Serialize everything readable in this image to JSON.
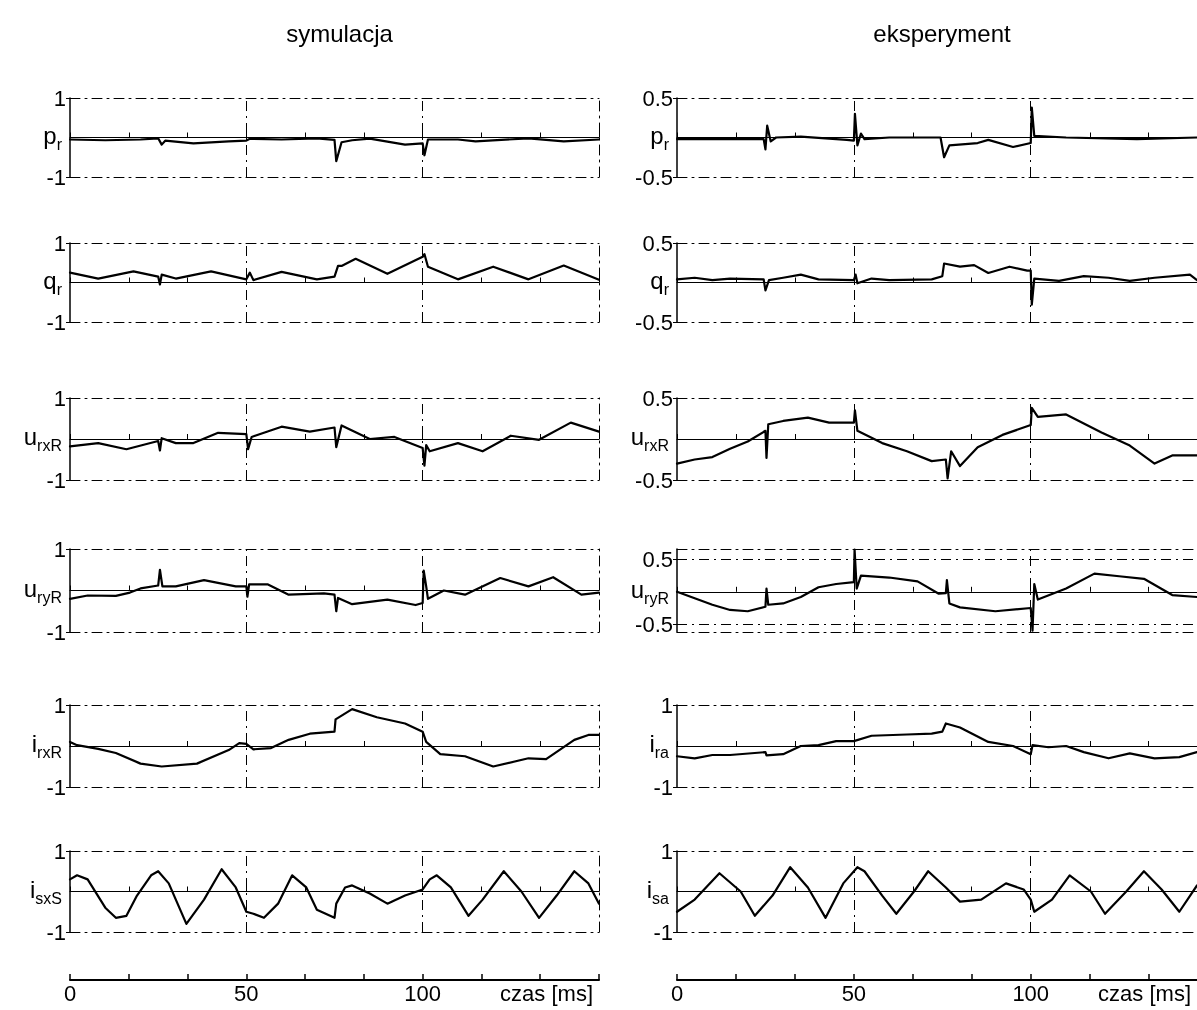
{
  "chart_data": [
    {
      "type": "line",
      "title": "symulacja",
      "ylabel": "p$_{r}$",
      "color": "#000000",
      "tick_labels": "y",
      "xlim": [
        0,
        150
      ],
      "xticks": [
        {
          "value": 0,
          "label": null
        },
        {
          "value": 16.7,
          "label": null
        },
        {
          "value": 33.3,
          "label": null
        },
        {
          "value": 50,
          "label": null
        },
        {
          "value": 66.7,
          "label": null
        },
        {
          "value": 83.3,
          "label": null
        },
        {
          "value": 100,
          "label": null
        },
        {
          "value": 116.7,
          "label": null
        },
        {
          "value": 133.3,
          "label": null
        },
        {
          "value": 150,
          "label": null
        }
      ],
      "ylim": [
        -1,
        1
      ],
      "yticks": [
        -1,
        1
      ],
      "ref_lines": [
        {
          "axis": "x",
          "value": 50,
          "line_style": "dashed"
        },
        {
          "axis": "x",
          "value": 100,
          "line_style": "dashed"
        }
      ],
      "x": [
        0,
        10,
        20,
        25,
        26,
        27,
        35,
        45,
        50,
        51,
        60,
        70,
        75,
        75.5,
        77,
        80,
        85,
        95,
        100,
        100.5,
        101.5,
        110,
        115,
        130,
        140,
        150
      ],
      "values": [
        -0.05,
        -0.07,
        -0.05,
        -0.02,
        -0.18,
        -0.08,
        -0.15,
        -0.1,
        -0.08,
        -0.03,
        -0.05,
        -0.02,
        -0.06,
        -0.6,
        -0.12,
        -0.07,
        -0.03,
        -0.18,
        -0.15,
        -0.45,
        -0.05,
        -0.05,
        -0.1,
        -0.02,
        -0.1,
        -0.05
      ]
    },
    {
      "type": "line",
      "title": "eksperyment",
      "ylabel": "p$_{r}$",
      "color": "#000000",
      "tick_labels": "y",
      "xlim": [
        0,
        147
      ],
      "xticks": [
        {
          "value": 0,
          "label": null
        },
        {
          "value": 16.7,
          "label": null
        },
        {
          "value": 33.3,
          "label": null
        },
        {
          "value": 50,
          "label": null
        },
        {
          "value": 66.7,
          "label": null
        },
        {
          "value": 83.3,
          "label": null
        },
        {
          "value": 100,
          "label": null
        },
        {
          "value": 116.7,
          "label": null
        },
        {
          "value": 133.3,
          "label": null
        }
      ],
      "ylim": [
        -0.5,
        0.5
      ],
      "yticks": [
        -0.5,
        0.5
      ],
      "ref_lines": [
        {
          "axis": "x",
          "value": 50,
          "line_style": "dashed"
        },
        {
          "axis": "x",
          "value": 100,
          "line_style": "dashed"
        }
      ],
      "x": [
        0,
        10,
        24.5,
        25,
        25.5,
        26.5,
        28,
        35,
        48,
        50,
        50.3,
        51,
        52,
        53,
        60,
        74.5,
        75.5,
        77,
        85,
        88,
        95,
        100,
        100.3,
        101,
        110,
        130,
        147
      ],
      "values": [
        -0.02,
        -0.02,
        -0.02,
        -0.15,
        0.15,
        -0.05,
        0,
        0.01,
        -0.03,
        -0.04,
        0.3,
        -0.1,
        0.05,
        -0.02,
        0,
        0,
        -0.25,
        -0.1,
        -0.07,
        -0.03,
        -0.12,
        -0.07,
        0.38,
        0.02,
        0,
        -0.02,
        0
      ]
    },
    {
      "type": "line",
      "ylabel": "q$_{r}$",
      "color": "#000000",
      "tick_labels": "y",
      "xlim": [
        0,
        150
      ],
      "xticks": [
        {
          "value": 0,
          "label": null
        },
        {
          "value": 16.7,
          "label": null
        },
        {
          "value": 33.3,
          "label": null
        },
        {
          "value": 50,
          "label": null
        },
        {
          "value": 66.7,
          "label": null
        },
        {
          "value": 83.3,
          "label": null
        },
        {
          "value": 100,
          "label": null
        },
        {
          "value": 116.7,
          "label": null
        },
        {
          "value": 133.3,
          "label": null
        },
        {
          "value": 150,
          "label": null
        }
      ],
      "ylim": [
        -1,
        1
      ],
      "yticks": [
        -1,
        1
      ],
      "ref_lines": [
        {
          "axis": "x",
          "value": 50,
          "line_style": "dashed"
        },
        {
          "axis": "x",
          "value": 100,
          "line_style": "dashed"
        }
      ],
      "x": [
        0,
        8,
        18,
        25,
        25.5,
        26,
        30,
        40,
        50,
        51,
        52,
        60,
        70,
        75,
        76,
        77,
        81,
        90,
        100,
        100.5,
        101.5,
        110,
        120,
        130,
        140,
        150
      ],
      "values": [
        0.25,
        0.1,
        0.28,
        0.15,
        -0.05,
        0.2,
        0.1,
        0.28,
        0.08,
        0.25,
        0.06,
        0.27,
        0.08,
        0.15,
        0.42,
        0.42,
        0.6,
        0.22,
        0.65,
        0.72,
        0.4,
        0.08,
        0.4,
        0.08,
        0.43,
        0.07
      ]
    },
    {
      "type": "line",
      "ylabel": "q$_{r}$",
      "color": "#000000",
      "tick_labels": "y",
      "xlim": [
        0,
        147
      ],
      "xticks": [
        {
          "value": 0,
          "label": null
        },
        {
          "value": 16.7,
          "label": null
        },
        {
          "value": 33.3,
          "label": null
        },
        {
          "value": 50,
          "label": null
        },
        {
          "value": 66.7,
          "label": null
        },
        {
          "value": 83.3,
          "label": null
        },
        {
          "value": 100,
          "label": null
        },
        {
          "value": 116.7,
          "label": null
        },
        {
          "value": 133.3,
          "label": null
        }
      ],
      "ylim": [
        -0.5,
        0.5
      ],
      "yticks": [
        -0.5,
        0.5
      ],
      "ref_lines": [
        {
          "axis": "x",
          "value": 50,
          "line_style": "dashed"
        },
        {
          "axis": "x",
          "value": 100,
          "line_style": "dashed"
        }
      ],
      "x": [
        0,
        5,
        10,
        15,
        24.5,
        25,
        26,
        30,
        35,
        40,
        50,
        50.5,
        51,
        55,
        60,
        72,
        75,
        75.5,
        80,
        84,
        88,
        94,
        99,
        100,
        100.3,
        101,
        108,
        115,
        122,
        128,
        135,
        145,
        147
      ],
      "values": [
        0.04,
        0.06,
        0.03,
        0.05,
        0.04,
        -0.1,
        0.03,
        0.06,
        0.1,
        0.04,
        0.03,
        0.1,
        -0.01,
        0.05,
        0.03,
        0.04,
        0.08,
        0.24,
        0.2,
        0.22,
        0.12,
        0.2,
        0.15,
        0.15,
        -0.28,
        0.05,
        0.02,
        0.08,
        0.06,
        0.02,
        0.06,
        0.1,
        0.03
      ]
    },
    {
      "type": "line",
      "ylabel": "u$_{rxR}$",
      "color": "#000000",
      "tick_labels": "y",
      "xlim": [
        0,
        150
      ],
      "xticks": [
        {
          "value": 0,
          "label": null
        },
        {
          "value": 16.7,
          "label": null
        },
        {
          "value": 33.3,
          "label": null
        },
        {
          "value": 50,
          "label": null
        },
        {
          "value": 66.7,
          "label": null
        },
        {
          "value": 83.3,
          "label": null
        },
        {
          "value": 100,
          "label": null
        },
        {
          "value": 116.7,
          "label": null
        },
        {
          "value": 133.3,
          "label": null
        },
        {
          "value": 150,
          "label": null
        }
      ],
      "ylim": [
        -1,
        1
      ],
      "yticks": [
        -1,
        1
      ],
      "ref_lines": [
        {
          "axis": "x",
          "value": 50,
          "line_style": "dashed"
        },
        {
          "axis": "x",
          "value": 100,
          "line_style": "dashed"
        }
      ],
      "x": [
        0,
        8,
        16,
        25,
        25.5,
        26,
        30,
        35,
        42,
        50,
        50.5,
        51.5,
        60,
        68,
        75,
        75.5,
        77,
        85,
        92,
        100,
        100.5,
        101,
        102,
        110,
        117,
        125,
        133,
        142,
        150
      ],
      "values": [
        -0.18,
        -0.1,
        -0.25,
        -0.05,
        -0.28,
        0.02,
        -0.1,
        -0.1,
        0.15,
        0.12,
        -0.25,
        0.05,
        0.3,
        0.18,
        0.28,
        -0.2,
        0.33,
        0,
        0.05,
        -0.22,
        -0.65,
        -0.15,
        -0.3,
        -0.1,
        -0.3,
        0.08,
        -0.02,
        0.4,
        0.18
      ]
    },
    {
      "type": "line",
      "ylabel": "u$_{rxR}$",
      "color": "#000000",
      "tick_labels": "y",
      "xlim": [
        0,
        147
      ],
      "xticks": [
        {
          "value": 0,
          "label": null
        },
        {
          "value": 16.7,
          "label": null
        },
        {
          "value": 33.3,
          "label": null
        },
        {
          "value": 50,
          "label": null
        },
        {
          "value": 66.7,
          "label": null
        },
        {
          "value": 83.3,
          "label": null
        },
        {
          "value": 100,
          "label": null
        },
        {
          "value": 116.7,
          "label": null
        },
        {
          "value": 133.3,
          "label": null
        }
      ],
      "ylim": [
        -0.5,
        0.5
      ],
      "yticks": [
        -0.5,
        0.5
      ],
      "ref_lines": [
        {
          "axis": "x",
          "value": 50,
          "line_style": "dashed"
        },
        {
          "axis": "x",
          "value": 100,
          "line_style": "dashed"
        }
      ],
      "x": [
        0,
        5,
        10,
        15,
        20,
        25,
        25.3,
        25.8,
        30,
        37,
        43,
        50,
        50.3,
        51,
        58,
        65,
        72,
        76,
        76.5,
        77.5,
        80,
        85,
        92,
        100,
        100.3,
        102,
        110,
        120,
        128,
        135,
        140,
        147
      ],
      "values": [
        -0.3,
        -0.25,
        -0.22,
        -0.12,
        -0.03,
        0.1,
        -0.23,
        0.18,
        0.22,
        0.26,
        0.2,
        0.2,
        0.35,
        0.1,
        -0.05,
        -0.15,
        -0.27,
        -0.25,
        -0.48,
        -0.15,
        -0.33,
        -0.1,
        0.05,
        0.17,
        0.38,
        0.27,
        0.3,
        0.08,
        -0.08,
        -0.3,
        -0.2,
        -0.2
      ]
    },
    {
      "type": "line",
      "ylabel": "u$_{ryR}$",
      "color": "#000000",
      "tick_labels": "y",
      "xlim": [
        0,
        150
      ],
      "xticks": [
        {
          "value": 0,
          "label": null
        },
        {
          "value": 16.7,
          "label": null
        },
        {
          "value": 33.3,
          "label": null
        },
        {
          "value": 50,
          "label": null
        },
        {
          "value": 66.7,
          "label": null
        },
        {
          "value": 83.3,
          "label": null
        },
        {
          "value": 100,
          "label": null
        },
        {
          "value": 116.7,
          "label": null
        },
        {
          "value": 133.3,
          "label": null
        },
        {
          "value": 150,
          "label": null
        }
      ],
      "ylim": [
        -1,
        1
      ],
      "yticks": [
        -1,
        1
      ],
      "ref_lines": [
        {
          "axis": "x",
          "value": 50,
          "line_style": "dashed"
        },
        {
          "axis": "x",
          "value": 100,
          "line_style": "dashed"
        }
      ],
      "x": [
        0,
        5,
        13,
        17,
        20,
        25,
        25.5,
        26.2,
        30,
        38,
        47,
        50,
        50.3,
        50.8,
        56,
        62,
        72,
        75,
        75.5,
        76,
        80,
        90,
        98,
        100,
        100.3,
        101,
        101.5,
        106,
        112,
        122,
        130,
        137,
        145,
        150
      ],
      "values": [
        -0.2,
        -0.12,
        -0.13,
        -0.05,
        0.05,
        0.12,
        0.5,
        0.1,
        0.1,
        0.25,
        0.1,
        0.1,
        -0.15,
        0.15,
        0.15,
        -0.1,
        -0.07,
        -0.1,
        -0.5,
        -0.18,
        -0.33,
        -0.22,
        -0.35,
        -0.3,
        0.48,
        0.1,
        -0.2,
        0,
        -0.1,
        0.3,
        0.1,
        0.32,
        -0.1,
        -0.05
      ]
    },
    {
      "type": "line",
      "ylabel": "u$_{ryR}$",
      "color": "#000000",
      "tick_labels": "y",
      "xlim": [
        0,
        147
      ],
      "xticks": [
        {
          "value": 0,
          "label": null
        },
        {
          "value": 16.7,
          "label": null
        },
        {
          "value": 33.3,
          "label": null
        },
        {
          "value": 50,
          "label": null
        },
        {
          "value": 66.7,
          "label": null
        },
        {
          "value": 83.3,
          "label": null
        },
        {
          "value": 100,
          "label": null
        },
        {
          "value": 116.7,
          "label": null
        },
        {
          "value": 133.3,
          "label": null
        }
      ],
      "ylim": [
        -0.62,
        0.66
      ],
      "yticks": [
        -0.5,
        0.5
      ],
      "ref_lines": [
        {
          "axis": "x",
          "value": 50,
          "line_style": "dashed"
        },
        {
          "axis": "x",
          "value": 100,
          "line_style": "dashed"
        },
        {
          "axis": "y",
          "value": 0.5,
          "line_style": "dashed"
        },
        {
          "axis": "y",
          "value": -0.5,
          "line_style": "dashed"
        }
      ],
      "x": [
        0,
        5,
        10,
        15,
        20,
        25,
        25.3,
        25.8,
        30,
        35,
        40,
        45,
        50,
        50.2,
        50.8,
        52,
        60,
        68,
        74,
        76,
        76.3,
        77,
        80,
        90,
        100,
        100.5,
        101,
        102,
        110,
        118,
        125,
        132,
        140,
        147
      ],
      "values": [
        0,
        -0.1,
        -0.2,
        -0.28,
        -0.3,
        -0.23,
        0.05,
        -0.2,
        -0.18,
        -0.08,
        0.07,
        0.12,
        0.15,
        0.65,
        0.05,
        0.25,
        0.22,
        0.16,
        -0.03,
        -0.02,
        0.18,
        -0.18,
        -0.24,
        -0.3,
        -0.25,
        -0.6,
        0.12,
        -0.12,
        0.05,
        0.28,
        0.24,
        0.2,
        -0.05,
        -0.08
      ]
    },
    {
      "type": "line",
      "ylabel": "i$_{rxR}$",
      "color": "#000000",
      "tick_labels": "y",
      "xlim": [
        0,
        150
      ],
      "xticks": [
        {
          "value": 0,
          "label": null
        },
        {
          "value": 16.7,
          "label": null
        },
        {
          "value": 33.3,
          "label": null
        },
        {
          "value": 50,
          "label": null
        },
        {
          "value": 66.7,
          "label": null
        },
        {
          "value": 83.3,
          "label": null
        },
        {
          "value": 100,
          "label": null
        },
        {
          "value": 116.7,
          "label": null
        },
        {
          "value": 133.3,
          "label": null
        },
        {
          "value": 150,
          "label": null
        }
      ],
      "ylim": [
        -1,
        1
      ],
      "yticks": [
        -1,
        1
      ],
      "ref_lines": [
        {
          "axis": "x",
          "value": 50,
          "line_style": "dashed"
        },
        {
          "axis": "x",
          "value": 100,
          "line_style": "dashed"
        }
      ],
      "x": [
        0,
        2,
        8,
        13,
        20,
        26,
        36,
        45,
        48,
        50,
        52,
        57,
        62,
        68,
        75,
        75.3,
        80,
        87,
        95,
        100,
        101,
        105,
        112,
        120,
        130,
        135,
        143,
        147,
        150
      ],
      "values": [
        0.1,
        0.02,
        -0.07,
        -0.17,
        -0.43,
        -0.5,
        -0.43,
        -0.1,
        0.07,
        0.05,
        -0.08,
        -0.05,
        0.15,
        0.3,
        0.35,
        0.65,
        0.9,
        0.7,
        0.55,
        0.35,
        0.1,
        -0.2,
        -0.25,
        -0.5,
        -0.3,
        -0.32,
        0.15,
        0.27,
        0.27
      ]
    },
    {
      "type": "line",
      "ylabel": "i$_{ra}$",
      "color": "#000000",
      "tick_labels": "y",
      "xlim": [
        0,
        147
      ],
      "xticks": [
        {
          "value": 0,
          "label": null
        },
        {
          "value": 16.7,
          "label": null
        },
        {
          "value": 33.3,
          "label": null
        },
        {
          "value": 50,
          "label": null
        },
        {
          "value": 66.7,
          "label": null
        },
        {
          "value": 83.3,
          "label": null
        },
        {
          "value": 100,
          "label": null
        },
        {
          "value": 116.7,
          "label": null
        },
        {
          "value": 133.3,
          "label": null
        }
      ],
      "ylim": [
        -1,
        1
      ],
      "yticks": [
        -1,
        1
      ],
      "ref_lines": [
        {
          "axis": "x",
          "value": 50,
          "line_style": "dashed"
        },
        {
          "axis": "x",
          "value": 100,
          "line_style": "dashed"
        }
      ],
      "x": [
        0,
        5,
        10,
        15,
        25,
        25.3,
        30,
        35,
        40,
        45,
        50,
        55,
        65,
        72,
        75,
        76,
        80,
        88,
        95,
        100,
        100.5,
        105,
        110,
        115,
        122,
        128,
        135,
        142,
        147
      ],
      "values": [
        -0.25,
        -0.3,
        -0.22,
        -0.22,
        -0.15,
        -0.23,
        -0.2,
        0,
        0.02,
        0.12,
        0.12,
        0.25,
        0.28,
        0.3,
        0.35,
        0.55,
        0.45,
        0.1,
        0,
        -0.2,
        0.02,
        -0.03,
        0,
        -0.15,
        -0.3,
        -0.18,
        -0.3,
        -0.27,
        -0.15
      ]
    },
    {
      "type": "line",
      "ylabel": "i$_{sxS}$",
      "xlabel": "czas [ms]",
      "color": "#000000",
      "xlim": [
        0,
        150
      ],
      "xticks": [
        0,
        {
          "value": 16.7,
          "label": null
        },
        {
          "value": 33.3,
          "label": null
        },
        50,
        {
          "value": 66.7,
          "label": null
        },
        {
          "value": 83.3,
          "label": null
        },
        100,
        {
          "value": 116.7,
          "label": null
        },
        {
          "value": 133.3,
          "label": null
        },
        {
          "value": 150,
          "label": null
        }
      ],
      "ylim": [
        -1,
        1
      ],
      "yticks": [
        -1,
        1
      ],
      "ref_lines": [
        {
          "axis": "x",
          "value": 50,
          "line_style": "dashed"
        },
        {
          "axis": "x",
          "value": 100,
          "line_style": "dashed"
        }
      ],
      "x": [
        0,
        2,
        5,
        10,
        13,
        16,
        19,
        23,
        25,
        28,
        33,
        38,
        43,
        47,
        50,
        52,
        55,
        59,
        63,
        67,
        70,
        75,
        75.5,
        78,
        80,
        85,
        90,
        95,
        100,
        102,
        104,
        108,
        113,
        117,
        123,
        128,
        133,
        138,
        143,
        147,
        150
      ],
      "values": [
        0.3,
        0.4,
        0.3,
        -0.4,
        -0.65,
        -0.6,
        -0.1,
        0.4,
        0.5,
        0.2,
        -0.8,
        -0.2,
        0.55,
        0.1,
        -0.5,
        -0.55,
        -0.65,
        -0.3,
        0.4,
        0.1,
        -0.45,
        -0.65,
        -0.3,
        0.1,
        0.15,
        -0.05,
        -0.3,
        -0.1,
        0.05,
        0.3,
        0.4,
        0.1,
        -0.6,
        -0.2,
        0.5,
        0,
        -0.65,
        -0.1,
        0.5,
        0.2,
        -0.3
      ]
    },
    {
      "type": "line",
      "ylabel": "i$_{sa}$",
      "xlabel": "czas [ms]",
      "color": "#000000",
      "xlim": [
        0,
        147
      ],
      "xticks": [
        0,
        {
          "value": 16.7,
          "label": null
        },
        {
          "value": 33.3,
          "label": null
        },
        50,
        {
          "value": 66.7,
          "label": null
        },
        {
          "value": 83.3,
          "label": null
        },
        100,
        {
          "value": 116.7,
          "label": null
        },
        {
          "value": 133.3,
          "label": null
        }
      ],
      "ylim": [
        -1,
        1
      ],
      "yticks": [
        -1,
        1
      ],
      "ref_lines": [
        {
          "axis": "x",
          "value": 50,
          "line_style": "dashed"
        },
        {
          "axis": "x",
          "value": 100,
          "line_style": "dashed"
        }
      ],
      "x": [
        0,
        5,
        12,
        18,
        22,
        27,
        32,
        37,
        42,
        47,
        51,
        53,
        58,
        62,
        67,
        71,
        76,
        80,
        86,
        93,
        98,
        100,
        101,
        106,
        111,
        117,
        121,
        127,
        132,
        137,
        142,
        147
      ],
      "values": [
        -0.5,
        -0.2,
        0.45,
        0,
        -0.6,
        -0.1,
        0.6,
        0.1,
        -0.65,
        0.2,
        0.6,
        0.5,
        -0.1,
        -0.55,
        0,
        0.5,
        0.1,
        -0.25,
        -0.2,
        0.2,
        0.05,
        -0.2,
        -0.5,
        -0.2,
        0.4,
        0,
        -0.55,
        0,
        0.5,
        0.05,
        -0.5,
        0.15
      ]
    }
  ]
}
